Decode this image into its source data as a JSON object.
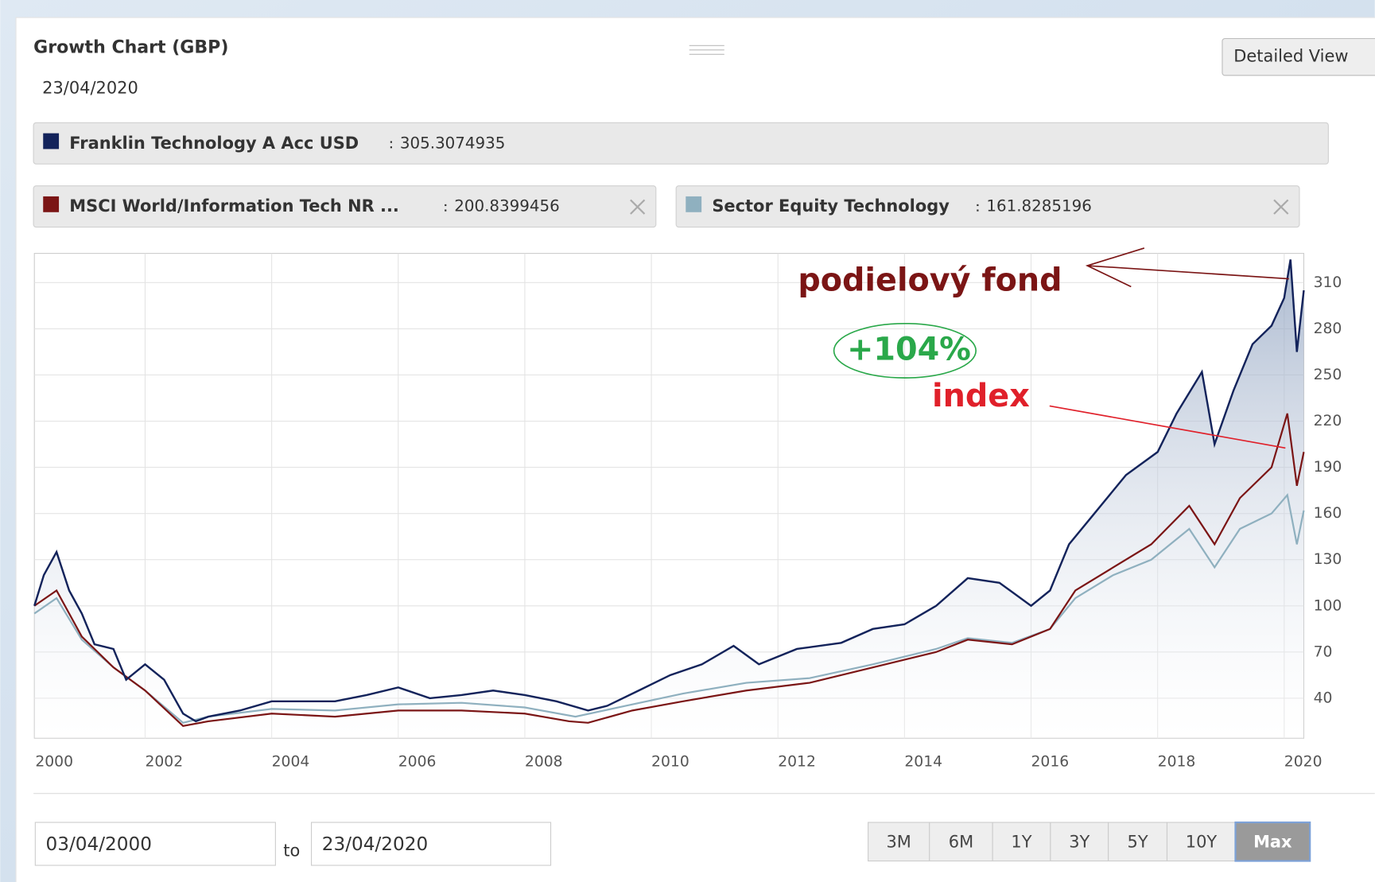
{
  "header": {
    "title": "Growth Chart (GBP)",
    "date": "23/04/2020",
    "button": "Detailed View"
  },
  "chart_data": {
    "type": "line",
    "xlim": [
      2000.25,
      2020.31
    ],
    "xticks": [
      2000,
      2002,
      2004,
      2006,
      2008,
      2010,
      2012,
      2014,
      2016,
      2018,
      2020
    ],
    "ylim": [
      14,
      329
    ],
    "yticks": [
      40,
      70,
      100,
      130,
      160,
      190,
      220,
      250,
      280,
      310
    ],
    "grid": true,
    "series": [
      {
        "name": "Franklin Technology A Acc USD",
        "color": "#13235b",
        "last_value": 305.3074935,
        "area": true,
        "x": [
          2000.25,
          2000.4,
          2000.6,
          2000.8,
          2001.0,
          2001.2,
          2001.5,
          2001.7,
          2002.0,
          2002.3,
          2002.6,
          2002.8,
          2003.0,
          2003.5,
          2004.0,
          2004.5,
          2005.0,
          2005.5,
          2006.0,
          2006.5,
          2007.0,
          2007.5,
          2008.0,
          2008.5,
          2009.0,
          2009.3,
          2009.8,
          2010.3,
          2010.8,
          2011.3,
          2011.7,
          2012.3,
          2013.0,
          2013.5,
          2014.0,
          2014.5,
          2015.0,
          2015.5,
          2016.0,
          2016.3,
          2016.6,
          2017.0,
          2017.5,
          2018.0,
          2018.3,
          2018.7,
          2018.9,
          2019.2,
          2019.5,
          2019.8,
          2020.0,
          2020.1,
          2020.2,
          2020.31
        ],
        "values": [
          100,
          120,
          135,
          110,
          95,
          75,
          72,
          52,
          62,
          52,
          30,
          25,
          28,
          32,
          38,
          38,
          38,
          42,
          47,
          40,
          42,
          45,
          42,
          38,
          32,
          35,
          45,
          55,
          62,
          74,
          62,
          72,
          76,
          85,
          88,
          100,
          118,
          115,
          100,
          110,
          140,
          160,
          185,
          200,
          225,
          252,
          205,
          240,
          270,
          282,
          300,
          325,
          265,
          305
        ]
      },
      {
        "name": "MSCI World/Information Tech NR ...",
        "color": "#7b1515",
        "last_value": 200.8399456,
        "x": [
          2000.25,
          2000.6,
          2001.0,
          2001.5,
          2002.0,
          2002.6,
          2003.0,
          2004.0,
          2005.0,
          2006.0,
          2007.0,
          2008.0,
          2008.7,
          2009.0,
          2009.7,
          2010.5,
          2011.5,
          2012.5,
          2013.5,
          2014.5,
          2015.0,
          2015.7,
          2016.3,
          2016.7,
          2017.3,
          2017.9,
          2018.5,
          2018.9,
          2019.3,
          2019.8,
          2020.05,
          2020.2,
          2020.31
        ],
        "values": [
          100,
          110,
          80,
          60,
          45,
          22,
          25,
          30,
          28,
          32,
          32,
          30,
          25,
          24,
          32,
          38,
          45,
          50,
          60,
          70,
          78,
          75,
          85,
          110,
          125,
          140,
          165,
          140,
          170,
          190,
          225,
          178,
          200
        ]
      },
      {
        "name": "Sector Equity Technology",
        "color": "#8fb0bf",
        "last_value": 161.8285196,
        "x": [
          2000.25,
          2000.6,
          2001.0,
          2001.5,
          2002.0,
          2002.6,
          2003.0,
          2004.0,
          2005.0,
          2006.0,
          2007.0,
          2008.0,
          2008.8,
          2009.7,
          2010.5,
          2011.5,
          2012.5,
          2013.5,
          2014.5,
          2015.0,
          2015.7,
          2016.3,
          2016.7,
          2017.3,
          2017.9,
          2018.5,
          2018.9,
          2019.3,
          2019.8,
          2020.05,
          2020.2,
          2020.31
        ],
        "values": [
          95,
          105,
          78,
          60,
          45,
          24,
          28,
          33,
          32,
          36,
          37,
          34,
          28,
          36,
          43,
          50,
          53,
          62,
          72,
          79,
          76,
          85,
          105,
          120,
          130,
          150,
          125,
          150,
          160,
          172,
          140,
          162
        ]
      }
    ],
    "annotations": [
      "podielový fond",
      "+104%",
      "index"
    ]
  },
  "controls": {
    "from": "03/04/2000",
    "to_label": "to",
    "to": "23/04/2020",
    "ranges": [
      "3M",
      "6M",
      "1Y",
      "3Y",
      "5Y",
      "10Y",
      "Max"
    ]
  }
}
